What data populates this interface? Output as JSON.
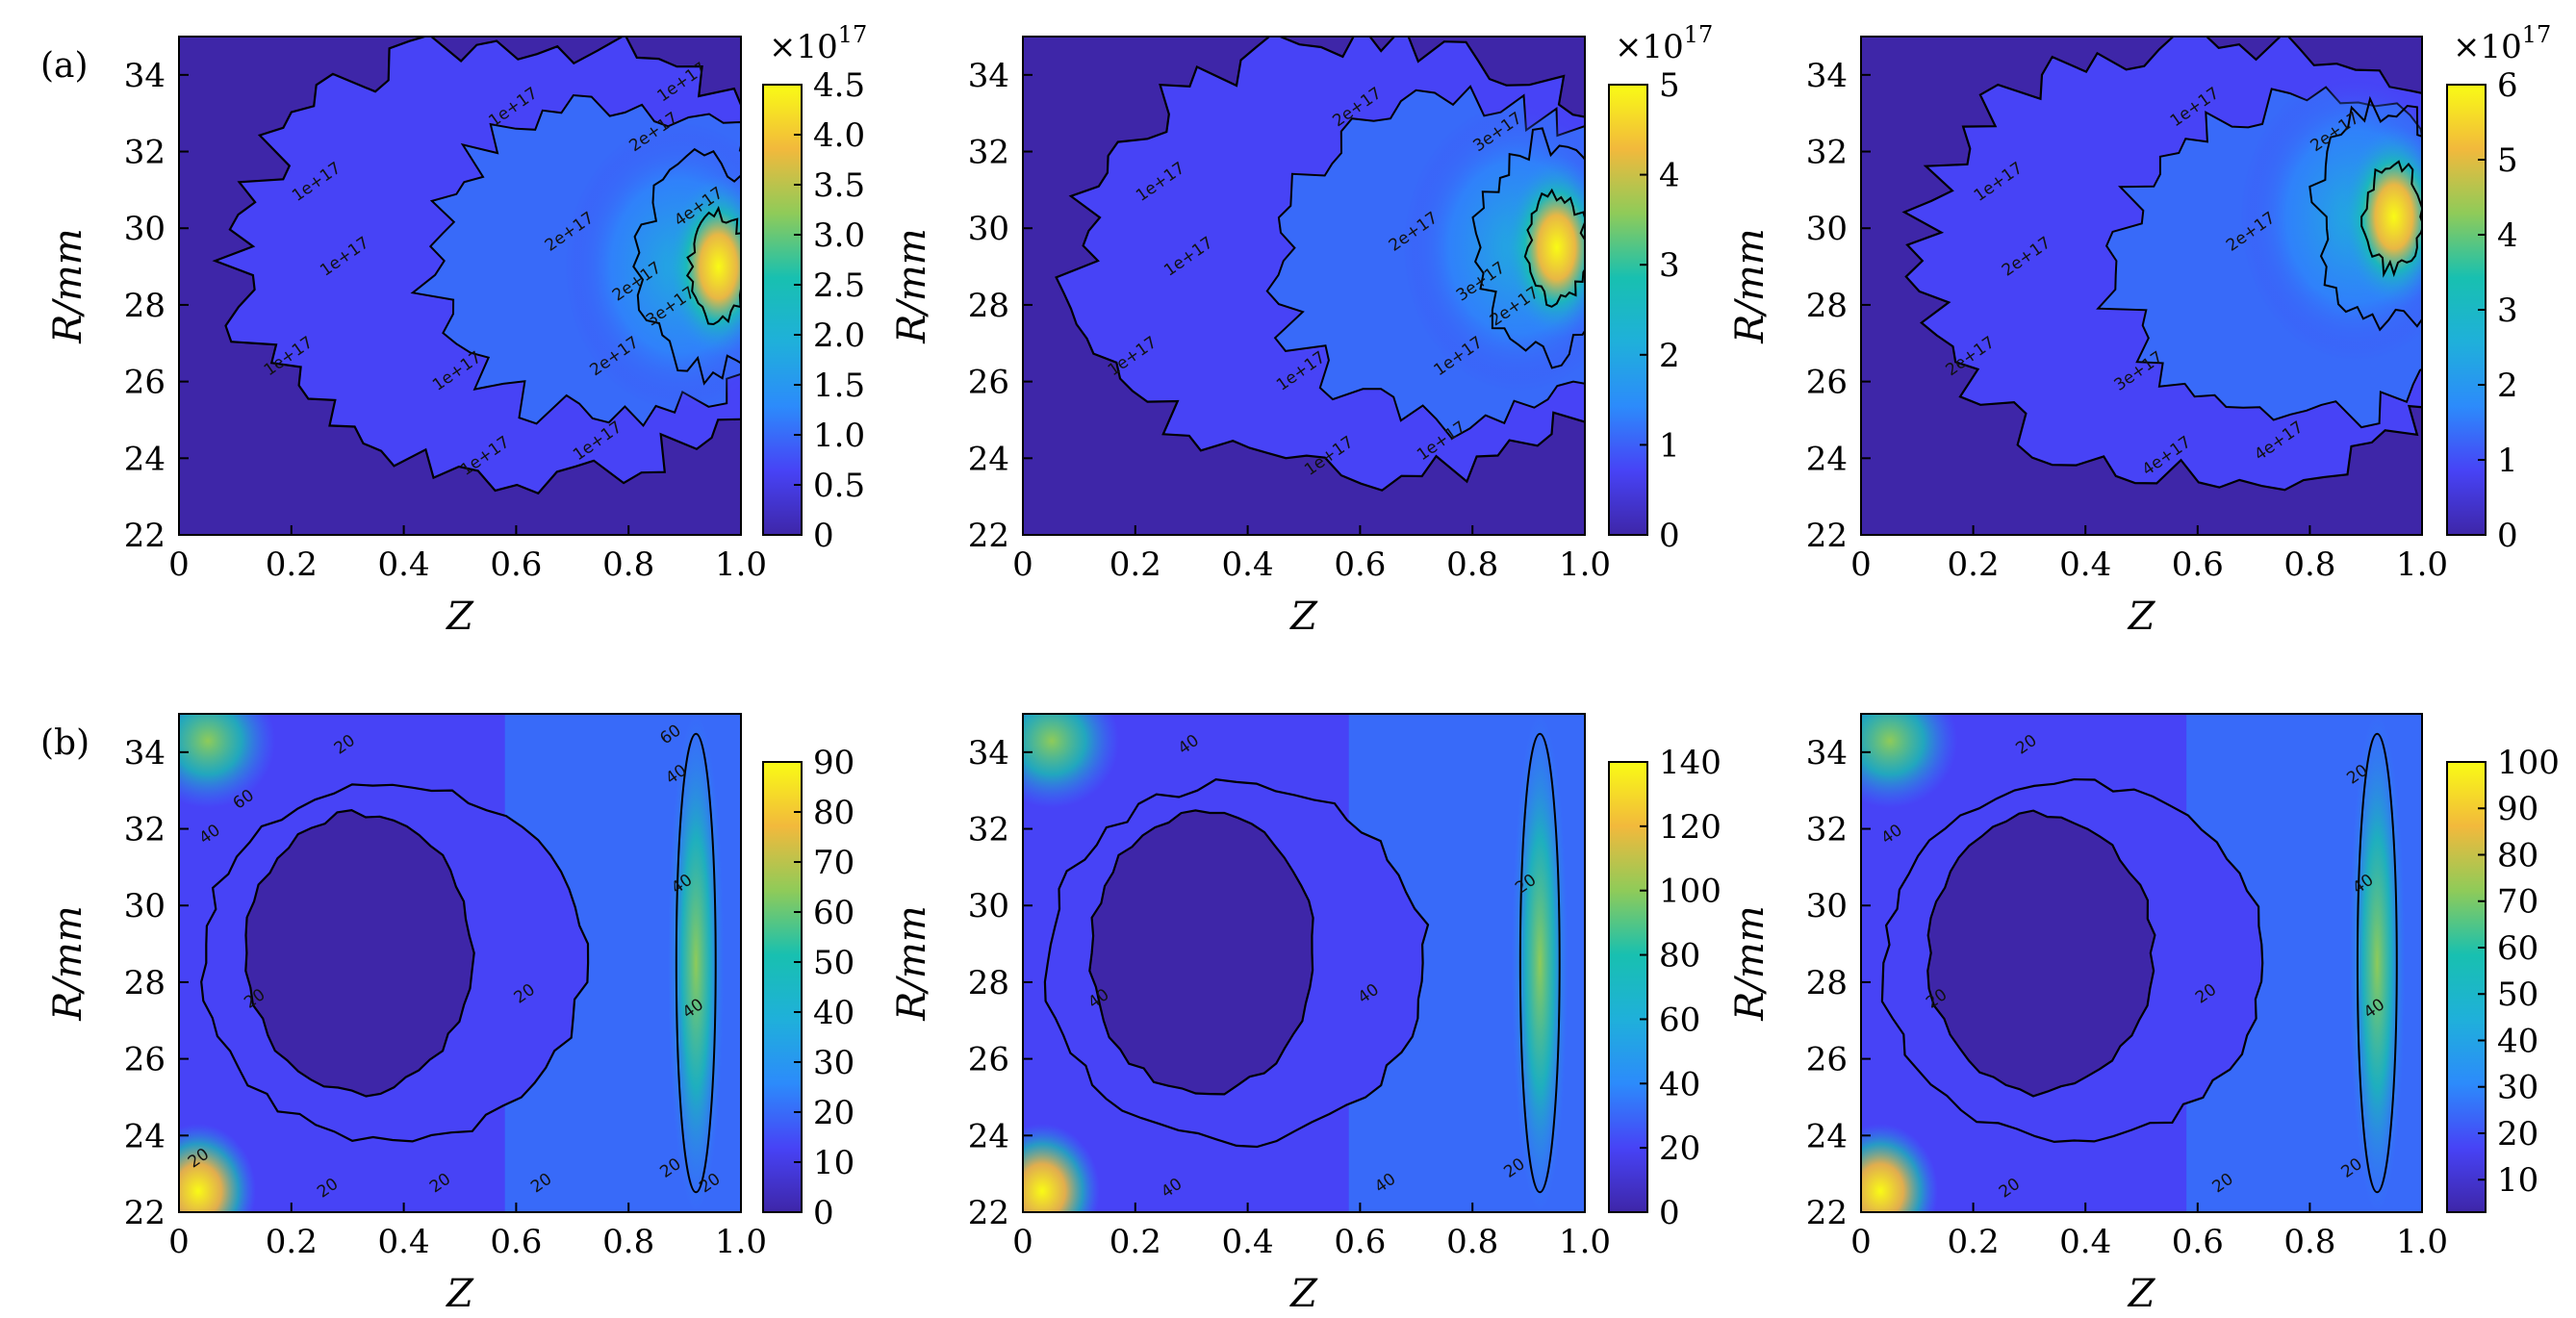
{
  "colors": {
    "colormap": [
      "#3e26a8",
      "#4743f6",
      "#2c8bfb",
      "#1fb0da",
      "#18c0b0",
      "#8fcb59",
      "#f2b93c",
      "#f9fb15"
    ],
    "contour_line": "#000000",
    "frame": "#000000"
  },
  "chart_data": [
    {
      "type": "heatmap",
      "panel_label": "(a)",
      "xlabel": "Z",
      "ylabel": "R/mm",
      "xlim": [
        0,
        1.0
      ],
      "ylim": [
        22,
        35
      ],
      "x_ticks": [
        "0",
        "0.2",
        "0.4",
        "0.6",
        "0.8",
        "1.0"
      ],
      "y_ticks": [
        "22",
        "24",
        "26",
        "28",
        "30",
        "32",
        "34"
      ],
      "colorbar": {
        "min": 0,
        "max": 4.5,
        "ticks": [
          "0",
          "0.5",
          "1.0",
          "1.5",
          "2.0",
          "2.5",
          "3.0",
          "3.5",
          "4.0",
          "4.5"
        ],
        "multiplier": "×10",
        "exponent": "17"
      },
      "hotspot": {
        "z": 0.96,
        "r": 29.0
      },
      "contour_levels": [
        "1e+17",
        "2e+17",
        "3e+17",
        "4e+17"
      ],
      "contour_label_text": [
        "1e+17",
        "1e+17",
        "1e+17",
        "1e+17",
        "1e+17",
        "1e+17",
        "1e+17",
        "2e+17",
        "2e+17",
        "2e+17",
        "3e+17",
        "2e+17",
        "4e+17",
        "1e+17"
      ]
    },
    {
      "type": "heatmap",
      "panel_label": "",
      "xlabel": "Z",
      "ylabel": "R/mm",
      "xlim": [
        0,
        1.0
      ],
      "ylim": [
        22,
        35
      ],
      "x_ticks": [
        "0",
        "0.2",
        "0.4",
        "0.6",
        "0.8",
        "1.0"
      ],
      "y_ticks": [
        "22",
        "24",
        "26",
        "28",
        "30",
        "32",
        "34"
      ],
      "colorbar": {
        "min": 0,
        "max": 5,
        "ticks": [
          "0",
          "1",
          "2",
          "3",
          "4",
          "5"
        ],
        "multiplier": "×10",
        "exponent": "17"
      },
      "hotspot": {
        "z": 0.95,
        "r": 29.5
      },
      "contour_levels": [
        "1e+17",
        "2e+17",
        "3e+17",
        "4e+17"
      ],
      "contour_label_text": [
        "1e+17",
        "1e+17",
        "1e+17",
        "1e+17",
        "1e+17",
        "1e+17",
        "2e+17",
        "3e+17",
        "2e+17",
        "3e+17",
        "2e+17",
        "1e+17"
      ]
    },
    {
      "type": "heatmap",
      "panel_label": "",
      "xlabel": "Z",
      "ylabel": "R/mm",
      "xlim": [
        0,
        1.0
      ],
      "ylim": [
        22,
        35
      ],
      "x_ticks": [
        "0",
        "0.2",
        "0.4",
        "0.6",
        "0.8",
        "1.0"
      ],
      "y_ticks": [
        "22",
        "24",
        "26",
        "28",
        "30",
        "32",
        "34"
      ],
      "colorbar": {
        "min": 0,
        "max": 6,
        "ticks": [
          "0",
          "1",
          "2",
          "3",
          "4",
          "5",
          "6"
        ],
        "multiplier": "×10",
        "exponent": "17"
      },
      "hotspot": {
        "z": 0.95,
        "r": 30.3
      },
      "contour_levels": [
        "1e+17",
        "2e+17",
        "3e+17",
        "4e+17"
      ],
      "contour_label_text": [
        "1e+17",
        "2e+17",
        "2e+17",
        "3e+17",
        "4e+17",
        "4e+17",
        "1e+17",
        "2e+17",
        "2e+17"
      ]
    },
    {
      "type": "heatmap",
      "panel_label": "(b)",
      "xlabel": "Z",
      "ylabel": "R/mm",
      "xlim": [
        0,
        1.0
      ],
      "ylim": [
        22,
        35
      ],
      "x_ticks": [
        "0",
        "0.2",
        "0.4",
        "0.6",
        "0.8",
        "1.0"
      ],
      "y_ticks": [
        "22",
        "24",
        "26",
        "28",
        "30",
        "32",
        "34"
      ],
      "colorbar": {
        "min": 0,
        "max": 90,
        "ticks": [
          "0",
          "10",
          "20",
          "30",
          "40",
          "50",
          "60",
          "70",
          "80",
          "90"
        ],
        "multiplier": "",
        "exponent": ""
      },
      "contour_levels": [
        "20",
        "40",
        "60"
      ],
      "contour_label_text": [
        "20",
        "20",
        "20",
        "20",
        "20",
        "20",
        "40",
        "40",
        "40",
        "40",
        "60",
        "60",
        "20",
        "20",
        "20"
      ]
    },
    {
      "type": "heatmap",
      "panel_label": "",
      "xlabel": "Z",
      "ylabel": "R/mm",
      "xlim": [
        0,
        1.0
      ],
      "ylim": [
        22,
        35
      ],
      "x_ticks": [
        "0",
        "0.2",
        "0.4",
        "0.6",
        "0.8",
        "1.0"
      ],
      "y_ticks": [
        "22",
        "24",
        "26",
        "28",
        "30",
        "32",
        "34"
      ],
      "colorbar": {
        "min": 0,
        "max": 140,
        "ticks": [
          "0",
          "20",
          "40",
          "60",
          "80",
          "100",
          "120",
          "140"
        ],
        "multiplier": "",
        "exponent": ""
      },
      "contour_levels": [
        "20",
        "40"
      ],
      "contour_label_text": [
        "40",
        "40",
        "40",
        "40",
        "40",
        "20",
        "20"
      ]
    },
    {
      "type": "heatmap",
      "panel_label": "",
      "xlabel": "Z",
      "ylabel": "R/mm",
      "xlim": [
        0,
        1.0
      ],
      "ylim": [
        22,
        35
      ],
      "x_ticks": [
        "0",
        "0.2",
        "0.4",
        "0.6",
        "0.8",
        "1.0"
      ],
      "y_ticks": [
        "22",
        "24",
        "26",
        "28",
        "30",
        "32",
        "34"
      ],
      "colorbar": {
        "min": 3,
        "max": 100,
        "ticks": [
          "10",
          "20",
          "30",
          "40",
          "50",
          "60",
          "70",
          "80",
          "90",
          "100"
        ],
        "multiplier": "",
        "exponent": ""
      },
      "contour_levels": [
        "20",
        "40"
      ],
      "contour_label_text": [
        "20",
        "20",
        "20",
        "20",
        "20",
        "20",
        "40",
        "40",
        "40",
        "20"
      ]
    }
  ]
}
